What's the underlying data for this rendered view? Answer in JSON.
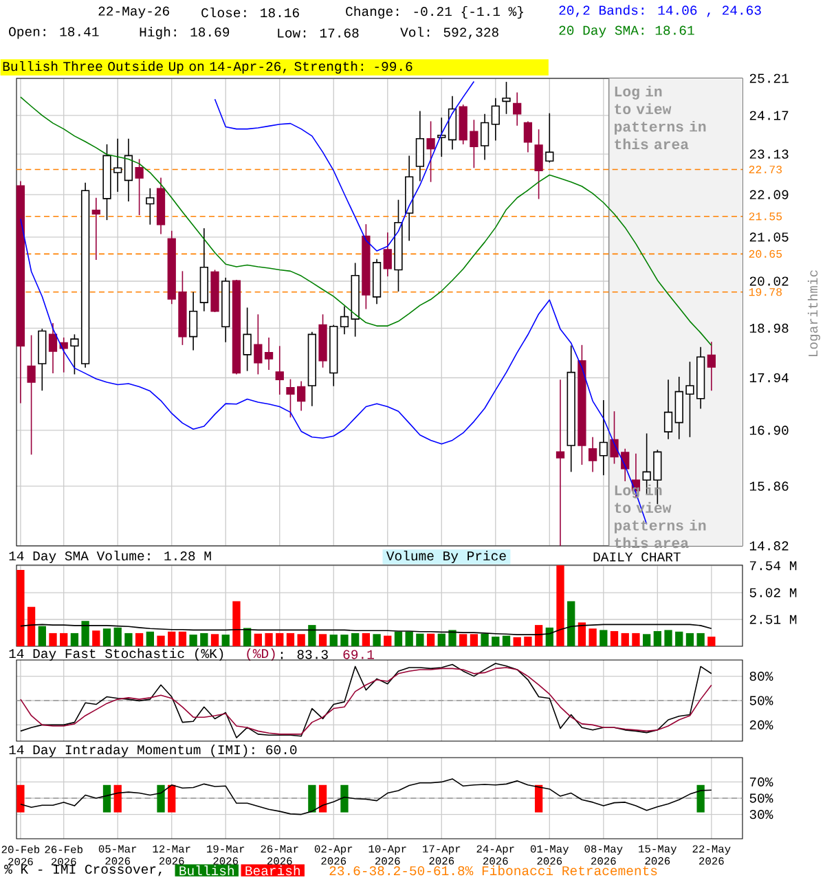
{
  "chart_data": [
    {
      "type": "candlestick",
      "title": "Bullish Three Outside Up on 14-Apr-26, Strength: -99.6",
      "ylabel": "Logarithmic",
      "categories": [
        null,
        null,
        null,
        null,
        null,
        null,
        null,
        null,
        null,
        null,
        null,
        null,
        null,
        null,
        null,
        null,
        null,
        null,
        null,
        null,
        null,
        null,
        null,
        null,
        null,
        null,
        null,
        null,
        null,
        null,
        null,
        null,
        null,
        null,
        null,
        null,
        null,
        null,
        null,
        null,
        null,
        null,
        null,
        null,
        null,
        null,
        null,
        null,
        null,
        null,
        null,
        null,
        null,
        null,
        null,
        null,
        null,
        null,
        null,
        null,
        null,
        null,
        null,
        null,
        null
      ],
      "ohlc": [
        [
          22.31,
          22.43,
          17.43,
          18.6
        ],
        [
          18.18,
          18.83,
          16.44,
          17.85
        ],
        [
          18.23,
          18.97,
          17.68,
          18.92
        ],
        [
          18.85,
          19.09,
          18.03,
          18.49
        ],
        [
          18.67,
          18.78,
          18.05,
          18.55
        ],
        [
          18.6,
          18.85,
          18.01,
          18.75
        ],
        [
          18.23,
          22.39,
          18.15,
          22.19
        ],
        [
          21.7,
          22.01,
          20.51,
          21.61
        ],
        [
          21.99,
          23.39,
          21.46,
          23.09
        ],
        [
          22.65,
          23.54,
          22.16,
          22.77
        ],
        [
          22.45,
          23.54,
          21.92,
          23.09
        ],
        [
          22.78,
          23.0,
          21.58,
          22.51
        ],
        [
          21.86,
          22.25,
          21.35,
          22.01
        ],
        [
          22.24,
          22.52,
          21.12,
          21.35
        ],
        [
          21.01,
          21.2,
          19.51,
          19.62
        ],
        [
          19.78,
          20.25,
          18.62,
          18.8
        ],
        [
          18.8,
          19.78,
          18.51,
          19.35
        ],
        [
          19.54,
          21.26,
          19.35,
          20.34
        ],
        [
          20.23,
          20.28,
          19.33,
          19.35
        ],
        [
          19.01,
          20.1,
          18.68,
          20.02
        ],
        [
          20.03,
          20.05,
          18.01,
          18.04
        ],
        [
          18.42,
          19.43,
          18.08,
          18.85
        ],
        [
          18.63,
          19.28,
          18.01,
          18.25
        ],
        [
          18.46,
          18.78,
          18.1,
          18.33
        ],
        [
          18.06,
          18.6,
          17.6,
          17.9
        ],
        [
          17.74,
          17.91,
          17.15,
          17.61
        ],
        [
          17.76,
          17.87,
          17.28,
          17.47
        ],
        [
          17.78,
          18.9,
          17.37,
          18.85
        ],
        [
          19.05,
          19.28,
          18.15,
          18.29
        ],
        [
          18.04,
          19.05,
          17.77,
          19.02
        ],
        [
          19.01,
          19.46,
          18.85,
          19.23
        ],
        [
          19.18,
          20.44,
          18.8,
          20.15
        ],
        [
          21.07,
          21.36,
          19.4,
          19.71
        ],
        [
          19.67,
          20.53,
          19.51,
          20.45
        ],
        [
          20.75,
          21.16,
          20.13,
          20.31
        ],
        [
          20.28,
          21.96,
          19.79,
          21.4
        ],
        [
          21.63,
          23.09,
          20.96,
          22.54
        ],
        [
          22.81,
          24.29,
          22.43,
          23.54
        ],
        [
          23.54,
          24.01,
          22.41,
          23.27
        ],
        [
          23.57,
          24.11,
          23.06,
          23.63
        ],
        [
          23.51,
          24.71,
          23.25,
          24.35
        ],
        [
          24.41,
          24.47,
          23.39,
          23.51
        ],
        [
          23.73,
          24.05,
          22.77,
          23.33
        ],
        [
          23.35,
          24.21,
          22.98,
          23.97
        ],
        [
          23.93,
          24.65,
          23.49,
          24.43
        ],
        [
          24.56,
          25.11,
          24.21,
          24.65
        ],
        [
          24.5,
          24.81,
          23.89,
          24.21
        ],
        [
          23.97,
          24.01,
          23.18,
          23.45
        ],
        [
          23.37,
          23.79,
          21.98,
          22.7
        ],
        [
          22.95,
          24.23,
          22.91,
          23.18
        ],
        [
          16.49,
          17.9,
          14.82,
          16.38
        ],
        [
          16.61,
          18.61,
          16.12,
          18.05
        ],
        [
          18.29,
          18.62,
          16.25,
          16.61
        ],
        [
          16.55,
          16.77,
          16.12,
          16.33
        ],
        [
          16.42,
          17.49,
          16.06,
          16.67
        ],
        [
          16.72,
          17.27,
          16.27,
          16.4
        ],
        [
          16.48,
          16.55,
          15.95,
          16.18
        ],
        [
          15.97,
          16.46,
          15.66,
          15.78
        ],
        [
          15.97,
          16.84,
          15.72,
          16.12
        ],
        [
          15.97,
          16.53,
          15.54,
          16.49
        ],
        [
          16.87,
          17.9,
          16.73,
          17.25
        ],
        [
          17.05,
          17.96,
          16.73,
          17.66
        ],
        [
          17.61,
          18.27,
          16.77,
          17.78
        ],
        [
          17.52,
          18.58,
          17.32,
          18.37
        ],
        [
          18.41,
          18.69,
          17.68,
          18.16
        ]
      ],
      "series": [
        {
          "name": "20 Day SMA: 18.61",
          "type": "line",
          "color": "#008000",
          "values": [
            24.68,
            24.42,
            24.17,
            23.96,
            23.8,
            23.61,
            23.46,
            23.3,
            23.12,
            23.06,
            23.0,
            22.88,
            22.65,
            22.35,
            22.01,
            21.66,
            21.33,
            21.0,
            20.68,
            20.41,
            20.35,
            20.39,
            20.35,
            20.32,
            20.28,
            20.25,
            20.14,
            19.99,
            19.83,
            19.68,
            19.48,
            19.28,
            19.1,
            19.03,
            19.03,
            19.13,
            19.3,
            19.48,
            19.61,
            19.8,
            20.04,
            20.3,
            20.62,
            20.93,
            21.28,
            21.72,
            22.01,
            22.2,
            22.41,
            22.59,
            22.5,
            22.41,
            22.3,
            22.12,
            21.89,
            21.61,
            21.28,
            20.89,
            20.46,
            20.04,
            19.73,
            19.43,
            19.13,
            18.88,
            18.61
          ]
        },
        {
          "name": "20,2 Bands: 14.06 , 24.63",
          "type": "line",
          "color": "#0000ff",
          "values": [
            null,
            null,
            null,
            null,
            null,
            null,
            null,
            null,
            null,
            null,
            null,
            null,
            null,
            null,
            null,
            null,
            null,
            null,
            24.62,
            23.86,
            23.8,
            23.8,
            23.83,
            23.88,
            23.93,
            23.95,
            23.8,
            23.61,
            23.18,
            22.7,
            22.1,
            21.53,
            20.97,
            20.72,
            20.83,
            21.19,
            21.81,
            22.33,
            22.99,
            23.67,
            24.23,
            24.68,
            25.12,
            null,
            null,
            null,
            null,
            null,
            null,
            null,
            null,
            null,
            null,
            null,
            null,
            null,
            null,
            null,
            null,
            null,
            null,
            null,
            null,
            null,
            null
          ]
        },
        {
          "type": "line",
          "color": "#0000ff",
          "values": [
            21.49,
            20.24,
            19.68,
            18.97,
            18.49,
            18.14,
            18.03,
            17.92,
            17.85,
            17.8,
            17.82,
            17.76,
            17.67,
            17.48,
            17.23,
            17.04,
            16.92,
            16.98,
            17.21,
            17.42,
            17.41,
            17.51,
            17.45,
            17.41,
            17.36,
            17.25,
            16.88,
            16.77,
            16.75,
            16.79,
            16.92,
            17.14,
            17.36,
            17.42,
            17.36,
            17.27,
            17.04,
            16.81,
            16.71,
            16.64,
            16.71,
            16.85,
            17.07,
            17.33,
            17.69,
            18.05,
            18.46,
            18.84,
            19.29,
            19.6,
            18.96,
            18.66,
            18.15,
            17.47,
            17.13,
            16.64,
            16.23,
            15.74,
            15.19,
            null,
            null,
            null,
            null,
            null,
            null
          ]
        }
      ],
      "log": "y",
      "ylim": [
        14.82,
        25.21
      ],
      "yticks": [
        14.82,
        15.86,
        {
          "value": 16.9,
          "label": "16.90"
        },
        17.94,
        18.98,
        20.02,
        21.05,
        22.09,
        23.13,
        24.17,
        25.21
      ],
      "grid": true,
      "tick_labels": "y",
      "ref_lines": [
        {
          "axis": "y",
          "value": 22.73,
          "label": "22.73",
          "color": "#ff8000",
          "line_style": "dashed"
        },
        {
          "axis": "y",
          "value": 21.55,
          "label": "21.55",
          "color": "#ff8000",
          "line_style": "dashed"
        },
        {
          "axis": "y",
          "value": 20.65,
          "label": "20.65",
          "color": "#ff8000",
          "line_style": "dashed"
        },
        {
          "axis": "y",
          "value": 19.78,
          "label": "19.78",
          "color": "#ff8000",
          "line_style": "dashed"
        }
      ],
      "annotations": [
        "22-May-26",
        "Close: 18.16",
        "Change: -0.21 {-1.1 %}",
        "Open: 18.41",
        "High: 18.69",
        "Low: 17.68",
        "Vol: 592,328",
        "Log in to view patterns in this area",
        "Log in to view patterns in this area"
      ]
    },
    {
      "type": "bar",
      "title": "14 Day SMA Volume: 1.28 M",
      "categories": [
        null,
        null,
        null,
        null,
        null,
        null,
        null,
        null,
        null,
        null,
        null,
        null,
        null,
        null,
        null,
        null,
        null,
        null,
        null,
        null,
        null,
        null,
        null,
        null,
        null,
        null,
        null,
        null,
        null,
        null,
        null,
        null,
        null,
        null,
        null,
        null,
        null,
        null,
        null,
        null,
        null,
        null,
        null,
        null,
        null,
        null,
        null,
        null,
        null,
        null,
        null,
        null,
        null,
        null,
        null,
        null,
        null,
        null,
        null,
        null,
        null,
        null,
        null,
        null,
        null
      ],
      "series": [
        {
          "type": "bar",
          "colors": [
            "#ff0000",
            "#ff0000",
            "#008000",
            "#ff0000",
            "#ff0000",
            "#008000",
            "#008000",
            "#ff0000",
            "#008000",
            "#008000",
            "#008000",
            "#ff0000",
            "#008000",
            "#ff0000",
            "#ff0000",
            "#ff0000",
            "#008000",
            "#008000",
            "#ff0000",
            "#008000",
            "#ff0000",
            "#008000",
            "#ff0000",
            "#ff0000",
            "#ff0000",
            "#ff0000",
            "#ff0000",
            "#008000",
            "#ff0000",
            "#008000",
            "#008000",
            "#008000",
            "#ff0000",
            "#008000",
            "#ff0000",
            "#008000",
            "#008000",
            "#008000",
            "#ff0000",
            "#008000",
            "#008000",
            "#ff0000",
            "#ff0000",
            "#008000",
            "#008000",
            "#008000",
            "#ff0000",
            "#ff0000",
            "#ff0000",
            "#008000",
            "#ff0000",
            "#008000",
            "#ff0000",
            "#ff0000",
            "#008000",
            "#ff0000",
            "#ff0000",
            "#ff0000",
            "#008000",
            "#008000",
            "#008000",
            "#008000",
            "#008000",
            "#008000",
            "#ff0000"
          ],
          "values": [
            7.15,
            3.69,
            1.89,
            1.23,
            1.23,
            1.23,
            2.37,
            1.47,
            1.66,
            1.75,
            1.23,
            1.23,
            1.37,
            0.99,
            1.37,
            1.37,
            1.09,
            1.23,
            1.14,
            1.09,
            4.22,
            1.71,
            1.18,
            1.23,
            1.23,
            1.23,
            1.14,
            1.99,
            1.14,
            1.09,
            1.09,
            1.23,
            1.23,
            1.14,
            0.99,
            1.37,
            1.37,
            1.18,
            1.18,
            1.18,
            1.52,
            1.14,
            1.14,
            1.18,
            0.9,
            0.99,
            0.85,
            0.9,
            1.99,
            1.75,
            7.58,
            4.22,
            2.23,
            1.66,
            1.52,
            1.42,
            1.23,
            1.23,
            1.14,
            1.42,
            1.52,
            1.37,
            1.23,
            1.23,
            0.9
          ]
        },
        {
          "type": "line",
          "color": "#000000",
          "values": [
            1.89,
            1.99,
            2.04,
            1.99,
            1.99,
            1.94,
            1.94,
            1.94,
            1.94,
            1.89,
            1.85,
            1.75,
            1.66,
            1.61,
            1.56,
            1.56,
            1.52,
            1.52,
            1.52,
            1.52,
            1.56,
            1.56,
            1.52,
            1.52,
            1.52,
            1.52,
            1.52,
            1.52,
            1.52,
            1.52,
            1.52,
            1.47,
            1.47,
            1.47,
            1.47,
            1.42,
            1.42,
            1.37,
            1.37,
            1.33,
            1.33,
            1.28,
            1.28,
            1.23,
            1.18,
            1.14,
            1.09,
            1.09,
            1.09,
            1.18,
            1.56,
            1.85,
            1.94,
            1.99,
            2.04,
            2.04,
            2.04,
            2.04,
            2.04,
            2.04,
            2.04,
            2.04,
            2.04,
            1.94,
            1.66
          ]
        }
      ],
      "ylim": [
        0,
        7.6
      ],
      "yticks": [
        {
          "value": 2.51,
          "label": "2.51 M"
        },
        {
          "value": 5.02,
          "label": "5.02 M"
        },
        {
          "value": 7.54,
          "label": "7.54 M"
        }
      ],
      "grid": true,
      "tick_labels": "y",
      "annotations": [
        "Volume By Price",
        "DAILY CHART"
      ]
    },
    {
      "type": "line",
      "title": "14 Day Fast Stochastic (%K)",
      "categories": [
        null,
        null,
        null,
        null,
        null,
        null,
        null,
        null,
        null,
        null,
        null,
        null,
        null,
        null,
        null,
        null,
        null,
        null,
        null,
        null,
        null,
        null,
        null,
        null,
        null,
        null,
        null,
        null,
        null,
        null,
        null,
        null,
        null,
        null,
        null,
        null,
        null,
        null,
        null,
        null,
        null,
        null,
        null,
        null,
        null,
        null,
        null,
        null,
        null,
        null,
        null,
        null,
        null,
        null,
        null,
        null,
        null,
        null,
        null,
        null,
        null,
        null,
        null,
        null,
        null
      ],
      "series": [
        {
          "color": "#000000",
          "values": [
            12.4,
            16.8,
            20.0,
            20.0,
            20.0,
            23.2,
            47.2,
            45.3,
            54.7,
            52.8,
            51.6,
            49.7,
            51.6,
            69.3,
            54.7,
            23.2,
            24.4,
            42.1,
            27.6,
            35.2,
            4.2,
            16.8,
            8.6,
            7.4,
            7.4,
            7.4,
            6.1,
            40.2,
            27.6,
            45.3,
            48.4,
            92.0,
            62.9,
            76.8,
            70.5,
            86.3,
            90.7,
            90.7,
            89.5,
            90.7,
            94.5,
            86.3,
            80.0,
            88.2,
            95.8,
            92.6,
            88.2,
            75.6,
            54.7,
            52.8,
            15.6,
            32.6,
            16.8,
            13.7,
            16.8,
            16.8,
            13.7,
            12.4,
            10.5,
            13.7,
            26.3,
            30.7,
            32.6,
            92.0,
            83.3
          ]
        },
        {
          "name": "(%D)",
          "color": "#990033",
          "values": [
            51.6,
            31.4,
            20.0,
            18.7,
            18.7,
            21.3,
            31.4,
            38.9,
            46.5,
            51.6,
            53.5,
            51.6,
            53.5,
            56.6,
            52.8,
            42.1,
            29.5,
            29.5,
            31.4,
            33.9,
            18.7,
            16.8,
            12.4,
            9.9,
            8.6,
            8.6,
            8.6,
            23.2,
            29.5,
            40.2,
            42.1,
            61.1,
            69.3,
            75.6,
            73.7,
            83.2,
            86.3,
            88.2,
            88.2,
            89.5,
            89.5,
            88.2,
            83.2,
            84.4,
            89.5,
            90.7,
            88.2,
            80.0,
            69.3,
            57.9,
            42.1,
            29.5,
            21.3,
            20.0,
            16.8,
            16.8,
            14.9,
            13.7,
            12.4,
            13.7,
            18.7,
            26.3,
            31.4,
            51.6,
            69.1
          ]
        }
      ],
      "ylim": [
        0,
        100
      ],
      "yticks": [
        {
          "value": 20,
          "label": "20%"
        },
        {
          "value": 50,
          "label": "50%"
        },
        {
          "value": 80,
          "label": "80%"
        }
      ],
      "grid": true,
      "tick_labels": "y",
      "ref_lines": [
        {
          "axis": "y",
          "value": 50,
          "color": "#999999",
          "line_style": "dashed"
        }
      ],
      "annotations": [
        ": 83.3",
        "69.1"
      ]
    },
    {
      "type": "line",
      "title": "14 Day Intraday Momentum (IMI): 60.0",
      "categories": [
        "20-Feb 2026",
        null,
        null,
        null,
        "26-Feb 2026",
        null,
        null,
        null,
        null,
        "05-Mar 2026",
        null,
        null,
        null,
        null,
        "12-Mar 2026",
        null,
        null,
        null,
        null,
        "19-Mar 2026",
        null,
        null,
        null,
        null,
        "26-Mar 2026",
        null,
        null,
        null,
        null,
        "02-Apr 2026",
        null,
        null,
        null,
        null,
        "10-Apr 2026",
        null,
        null,
        null,
        null,
        "17-Apr 2026",
        null,
        null,
        null,
        null,
        "24-Apr 2026",
        null,
        null,
        null,
        null,
        "01-May 2026",
        null,
        null,
        null,
        null,
        "08-May 2026",
        null,
        null,
        null,
        null,
        "15-May 2026",
        null,
        null,
        null,
        null,
        "22-May 2026"
      ],
      "series": [
        {
          "type": "bar",
          "name": "Bullish",
          "color": "#008000",
          "base": [
            null,
            null,
            null,
            null,
            null,
            null,
            null,
            null,
            32.5,
            null,
            null,
            null,
            null,
            32.5,
            null,
            null,
            null,
            null,
            null,
            null,
            null,
            null,
            null,
            null,
            null,
            null,
            null,
            32.5,
            null,
            null,
            32.5,
            null,
            null,
            null,
            null,
            null,
            null,
            null,
            null,
            null,
            null,
            null,
            null,
            null,
            null,
            null,
            null,
            null,
            null,
            null,
            null,
            null,
            null,
            null,
            null,
            null,
            null,
            null,
            null,
            null,
            null,
            null,
            null,
            32.5,
            null
          ],
          "values": [
            null,
            null,
            null,
            null,
            null,
            null,
            null,
            null,
            33.8,
            null,
            null,
            null,
            null,
            33.8,
            null,
            null,
            null,
            null,
            null,
            null,
            null,
            null,
            null,
            null,
            null,
            null,
            null,
            33.8,
            null,
            null,
            33.8,
            null,
            null,
            null,
            null,
            null,
            null,
            null,
            null,
            null,
            null,
            null,
            null,
            null,
            null,
            null,
            null,
            null,
            null,
            null,
            null,
            null,
            null,
            null,
            null,
            null,
            null,
            null,
            null,
            null,
            null,
            null,
            null,
            33.8,
            null
          ]
        },
        {
          "type": "bar",
          "name": "Bearish",
          "color": "#ff0000",
          "base": [
            32.5,
            null,
            null,
            null,
            null,
            null,
            null,
            null,
            null,
            32.5,
            null,
            null,
            null,
            null,
            32.5,
            null,
            null,
            null,
            null,
            null,
            null,
            null,
            null,
            null,
            null,
            null,
            null,
            null,
            32.5,
            null,
            null,
            null,
            null,
            null,
            null,
            null,
            null,
            null,
            null,
            null,
            null,
            null,
            null,
            null,
            null,
            null,
            null,
            null,
            32.5,
            null,
            null,
            null,
            null,
            null,
            null,
            null,
            null,
            null,
            null,
            null,
            null,
            null,
            null,
            null,
            null
          ],
          "values": [
            33.8,
            null,
            null,
            null,
            null,
            null,
            null,
            null,
            null,
            33.8,
            null,
            null,
            null,
            null,
            33.8,
            null,
            null,
            null,
            null,
            null,
            null,
            null,
            null,
            null,
            null,
            null,
            null,
            null,
            33.8,
            null,
            null,
            null,
            null,
            null,
            null,
            null,
            null,
            null,
            null,
            null,
            null,
            null,
            null,
            null,
            null,
            null,
            null,
            null,
            33.8,
            null,
            null,
            null,
            null,
            null,
            null,
            null,
            null,
            null,
            null,
            null,
            null,
            null,
            null,
            null,
            null
          ]
        },
        {
          "type": "line",
          "color": "#000000",
          "values": [
            42.5,
            38.8,
            41.3,
            41.3,
            45.0,
            40.6,
            53.8,
            50.0,
            53.1,
            56.3,
            57.5,
            56.3,
            53.8,
            56.3,
            66.3,
            62.5,
            63.1,
            67.5,
            64.4,
            65.0,
            43.8,
            43.8,
            40.0,
            36.3,
            33.8,
            30.6,
            30.0,
            33.8,
            41.3,
            45.6,
            51.3,
            49.4,
            48.8,
            46.9,
            56.3,
            59.4,
            65.6,
            68.8,
            68.8,
            70.0,
            73.8,
            65.0,
            66.3,
            66.9,
            66.3,
            67.5,
            71.3,
            66.3,
            63.8,
            61.3,
            52.5,
            56.3,
            48.1,
            45.0,
            40.6,
            44.4,
            45.0,
            40.6,
            35.0,
            39.4,
            43.1,
            48.1,
            55.0,
            59.4,
            60.0
          ]
        }
      ],
      "ylim": [
        0,
        100
      ],
      "yticks": [
        {
          "value": 30,
          "label": "30%"
        },
        {
          "value": 50,
          "label": "50%"
        },
        {
          "value": 70,
          "label": "70%"
        }
      ],
      "grid": true,
      "legend": "bottom",
      "legend_title": "% K - IMI Crossover,",
      "ref_lines": [
        {
          "axis": "y",
          "value": 50,
          "color": "#999999",
          "line_style": "dashed"
        }
      ],
      "annotations": [
        "23.6-38.2-50-61.8% Fibonacci Retracements"
      ]
    }
  ]
}
